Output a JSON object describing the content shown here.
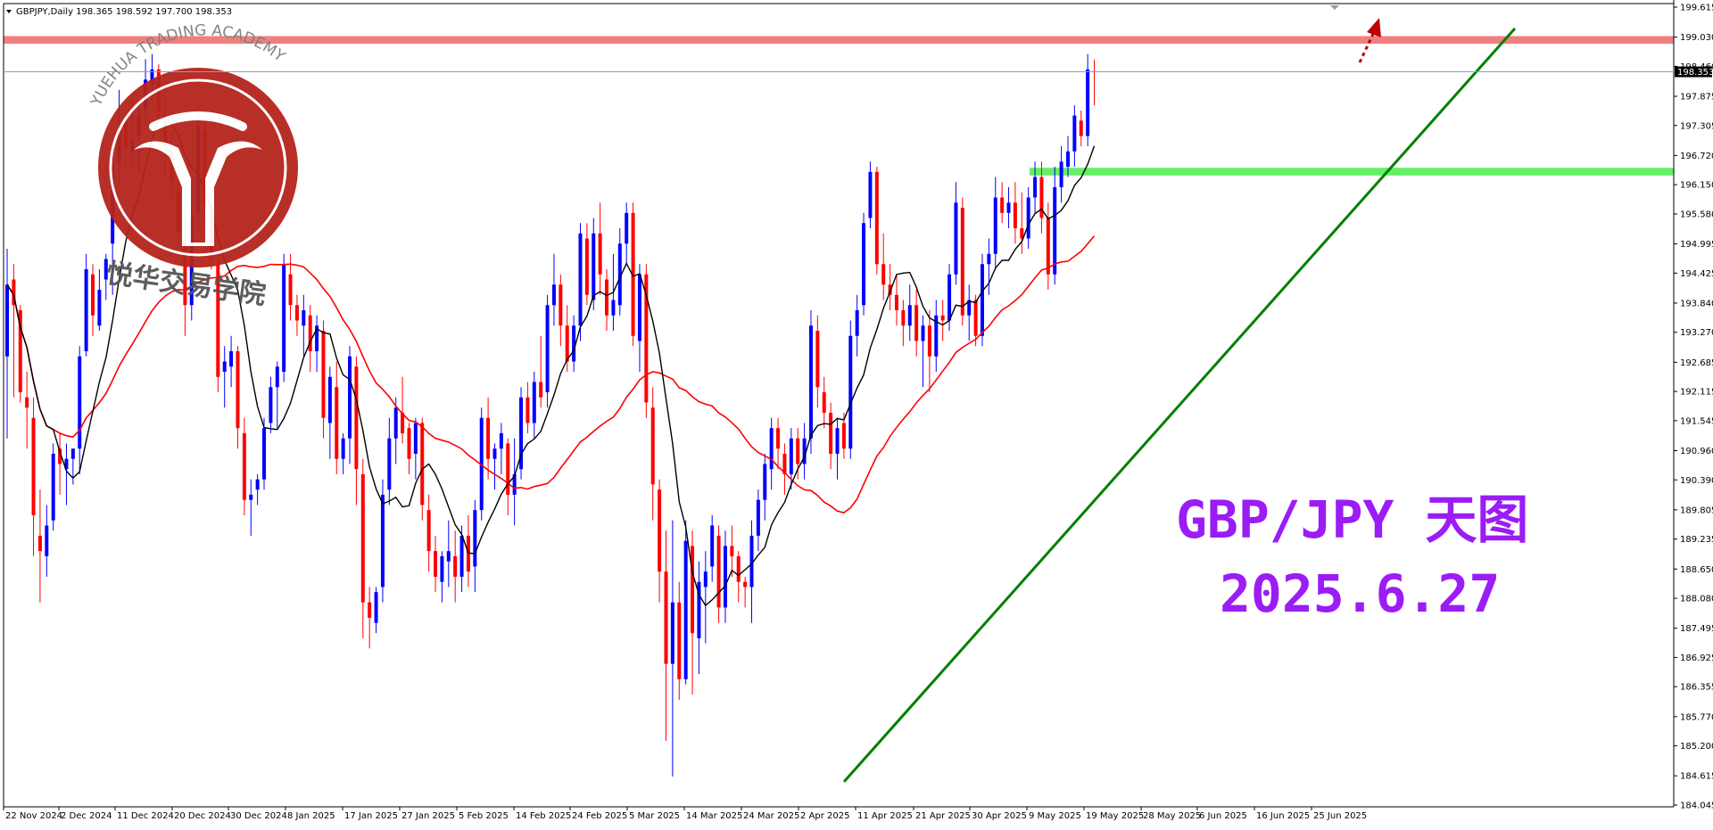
{
  "header": {
    "symbol_line": "GBPJPY,Daily  198.365 198.592 197.700 198.353"
  },
  "current_price_label": "198.353",
  "overlay": {
    "title": "GBP/JPY 天图",
    "date": "2025.6.27",
    "color": "#9b1cf5"
  },
  "watermark": {
    "ring_text": "YUEHUA TRADING ACADEMY",
    "cn_text": "悦华交易学院",
    "logo_color": "#b5241c"
  },
  "colors": {
    "bull": "#0000ff",
    "bear": "#ff0000",
    "fast_ma": "#000000",
    "slow_ma": "#ff0000",
    "trendline": "#008000",
    "resistance_band": "#f08080",
    "support_band": "#66ee66",
    "arrow": "#c00000"
  },
  "chart_data": {
    "type": "candlestick",
    "symbol": "GBPJPY",
    "timeframe": "Daily",
    "ylim": [
      184.045,
      199.615
    ],
    "y_ticks": [
      "199.615",
      "199.030",
      "198.460",
      "197.875",
      "197.305",
      "196.720",
      "196.150",
      "195.580",
      "194.995",
      "194.425",
      "193.840",
      "193.270",
      "192.685",
      "192.115",
      "191.545",
      "190.960",
      "190.390",
      "189.805",
      "189.235",
      "188.650",
      "188.080",
      "187.495",
      "186.925",
      "186.355",
      "185.770",
      "185.200",
      "184.615",
      "184.045"
    ],
    "x_labels": [
      "22 Nov 2024",
      "2 Dec 2024",
      "11 Dec 2024",
      "20 Dec 2024",
      "30 Dec 2024",
      "8 Jan 2025",
      "17 Jan 2025",
      "27 Jan 2025",
      "5 Feb 2025",
      "14 Feb 2025",
      "24 Feb 2025",
      "5 Mar 2025",
      "14 Mar 2025",
      "24 Mar 2025",
      "2 Apr 2025",
      "11 Apr 2025",
      "21 Apr 2025",
      "30 Apr 2025",
      "9 May 2025",
      "19 May 2025",
      "28 May 2025",
      "6 Jun 2025",
      "16 Jun 2025",
      "25 Jun 2025"
    ],
    "last_price": 198.353,
    "resistance_zone": [
      198.9,
      199.05
    ],
    "support_zone": [
      196.33,
      196.48
    ],
    "trendline": {
      "from": [
        "4 Apr 2025",
        184.5
      ],
      "to": [
        "1 Jul 2025",
        199.2
      ]
    },
    "candles": [
      [
        192.8,
        194.9,
        191.2,
        194.2
      ],
      [
        194.3,
        194.6,
        192.0,
        193.8
      ],
      [
        193.7,
        193.8,
        191.9,
        192.1
      ],
      [
        192.0,
        192.5,
        191.0,
        191.8
      ],
      [
        191.6,
        192.0,
        188.9,
        189.7
      ],
      [
        189.3,
        190.2,
        188.0,
        189.0
      ],
      [
        188.9,
        189.9,
        188.5,
        189.5
      ],
      [
        189.6,
        191.1,
        189.4,
        190.9
      ],
      [
        191.0,
        191.3,
        190.1,
        190.7
      ],
      [
        190.6,
        191.1,
        189.9,
        190.8
      ],
      [
        190.8,
        191.0,
        190.3,
        191.0
      ],
      [
        191.0,
        193.0,
        190.5,
        192.8
      ],
      [
        192.9,
        194.8,
        192.8,
        194.5
      ],
      [
        194.4,
        194.6,
        193.2,
        193.6
      ],
      [
        193.4,
        194.5,
        193.3,
        194.1
      ],
      [
        194.3,
        194.8,
        193.9,
        194.7
      ],
      [
        195.0,
        196.8,
        194.0,
        196.5
      ],
      [
        196.6,
        198.0,
        196.2,
        197.2
      ],
      [
        197.4,
        197.6,
        196.5,
        196.9
      ],
      [
        196.8,
        197.8,
        196.5,
        197.0
      ],
      [
        197.1,
        197.7,
        196.4,
        197.5
      ],
      [
        197.6,
        198.6,
        197.3,
        198.2
      ],
      [
        198.1,
        198.7,
        197.8,
        198.4
      ],
      [
        198.4,
        198.5,
        197.4,
        197.6
      ],
      [
        197.5,
        197.8,
        196.3,
        196.9
      ],
      [
        196.8,
        197.2,
        195.9,
        196.2
      ],
      [
        196.0,
        196.5,
        194.9,
        195.2
      ],
      [
        195.1,
        195.5,
        193.2,
        193.8
      ],
      [
        193.8,
        195.8,
        193.5,
        195.5
      ],
      [
        195.6,
        197.6,
        195.3,
        197.3
      ],
      [
        197.2,
        197.4,
        195.5,
        195.8
      ],
      [
        195.7,
        196.0,
        194.5,
        194.7
      ],
      [
        194.6,
        194.8,
        192.1,
        192.4
      ],
      [
        192.5,
        193.0,
        191.8,
        192.7
      ],
      [
        192.6,
        193.2,
        192.2,
        192.9
      ],
      [
        192.9,
        193.0,
        191.0,
        191.4
      ],
      [
        191.3,
        191.6,
        189.7,
        190.0
      ],
      [
        190.0,
        190.4,
        189.3,
        190.1
      ],
      [
        190.2,
        190.5,
        189.9,
        190.4
      ],
      [
        190.4,
        191.6,
        190.2,
        191.4
      ],
      [
        191.5,
        192.4,
        191.3,
        192.2
      ],
      [
        192.2,
        192.7,
        191.4,
        192.6
      ],
      [
        192.5,
        194.8,
        192.3,
        194.6
      ],
      [
        194.4,
        194.8,
        193.5,
        193.8
      ],
      [
        193.8,
        194.0,
        193.2,
        193.5
      ],
      [
        193.4,
        194.0,
        192.8,
        193.7
      ],
      [
        193.6,
        193.8,
        192.5,
        192.9
      ],
      [
        192.9,
        193.6,
        192.5,
        193.4
      ],
      [
        193.3,
        193.5,
        191.2,
        191.6
      ],
      [
        191.5,
        192.6,
        190.8,
        192.4
      ],
      [
        192.2,
        192.7,
        190.5,
        190.8
      ],
      [
        190.8,
        191.3,
        190.5,
        191.2
      ],
      [
        191.2,
        193.0,
        190.7,
        192.8
      ],
      [
        192.6,
        192.8,
        189.9,
        190.6
      ],
      [
        190.5,
        190.8,
        187.3,
        188.0
      ],
      [
        188.0,
        188.3,
        187.1,
        187.7
      ],
      [
        187.6,
        188.3,
        187.4,
        188.2
      ],
      [
        188.3,
        190.4,
        188.0,
        190.1
      ],
      [
        190.2,
        191.6,
        189.9,
        191.2
      ],
      [
        191.2,
        192.0,
        190.7,
        191.8
      ],
      [
        191.7,
        192.4,
        191.1,
        191.3
      ],
      [
        191.4,
        191.5,
        190.5,
        190.8
      ],
      [
        190.9,
        191.6,
        190.4,
        191.5
      ],
      [
        191.5,
        191.6,
        189.6,
        189.9
      ],
      [
        189.8,
        190.1,
        188.6,
        189.0
      ],
      [
        189.0,
        189.3,
        188.2,
        188.5
      ],
      [
        188.4,
        189.0,
        188.0,
        188.9
      ],
      [
        188.8,
        189.6,
        188.3,
        189.0
      ],
      [
        188.9,
        189.4,
        188.0,
        188.5
      ],
      [
        188.5,
        189.5,
        188.2,
        189.3
      ],
      [
        189.3,
        189.7,
        188.3,
        188.6
      ],
      [
        188.7,
        190.0,
        188.2,
        189.8
      ],
      [
        189.8,
        191.8,
        189.6,
        191.6
      ],
      [
        191.6,
        192.0,
        190.4,
        190.8
      ],
      [
        190.8,
        191.1,
        190.2,
        191.0
      ],
      [
        191.0,
        191.5,
        190.5,
        191.3
      ],
      [
        191.1,
        191.2,
        189.7,
        190.1
      ],
      [
        190.1,
        191.2,
        189.5,
        190.5
      ],
      [
        190.6,
        192.2,
        190.4,
        192.0
      ],
      [
        192.0,
        192.3,
        191.3,
        191.5
      ],
      [
        191.5,
        192.5,
        191.2,
        192.3
      ],
      [
        192.3,
        193.2,
        191.8,
        192.0
      ],
      [
        192.1,
        194.0,
        191.8,
        193.8
      ],
      [
        193.8,
        194.8,
        193.4,
        194.2
      ],
      [
        194.2,
        194.4,
        193.0,
        193.4
      ],
      [
        193.4,
        193.8,
        192.5,
        192.7
      ],
      [
        192.7,
        193.6,
        192.5,
        193.4
      ],
      [
        193.4,
        195.4,
        193.1,
        195.2
      ],
      [
        195.1,
        195.4,
        193.8,
        194.0
      ],
      [
        193.9,
        195.5,
        193.7,
        195.2
      ],
      [
        195.2,
        195.8,
        194.0,
        194.4
      ],
      [
        194.3,
        194.5,
        193.3,
        193.6
      ],
      [
        193.6,
        194.8,
        193.3,
        193.9
      ],
      [
        193.8,
        195.3,
        193.6,
        195.0
      ],
      [
        195.0,
        195.8,
        194.6,
        195.6
      ],
      [
        195.6,
        195.8,
        193.0,
        193.2
      ],
      [
        193.1,
        194.6,
        192.5,
        194.4
      ],
      [
        194.4,
        194.6,
        191.6,
        191.9
      ],
      [
        191.8,
        192.2,
        189.6,
        190.3
      ],
      [
        190.2,
        190.4,
        188.0,
        188.6
      ],
      [
        188.6,
        189.4,
        185.3,
        186.8
      ],
      [
        186.8,
        189.6,
        184.6,
        188.0
      ],
      [
        188.0,
        188.4,
        186.1,
        186.5
      ],
      [
        186.5,
        189.6,
        186.4,
        189.2
      ],
      [
        189.1,
        189.4,
        186.2,
        187.4
      ],
      [
        187.3,
        188.8,
        186.6,
        188.4
      ],
      [
        188.3,
        189.0,
        187.2,
        188.6
      ],
      [
        188.7,
        189.7,
        188.4,
        189.5
      ],
      [
        189.3,
        189.5,
        187.6,
        187.9
      ],
      [
        187.9,
        189.4,
        187.6,
        189.1
      ],
      [
        189.1,
        189.5,
        188.5,
        188.9
      ],
      [
        188.9,
        189.0,
        188.0,
        188.4
      ],
      [
        188.4,
        188.5,
        187.9,
        188.3
      ],
      [
        188.3,
        189.6,
        187.6,
        189.3
      ],
      [
        189.3,
        190.2,
        189.0,
        190.0
      ],
      [
        190.0,
        190.9,
        189.6,
        190.7
      ],
      [
        190.6,
        191.6,
        190.2,
        191.4
      ],
      [
        191.4,
        191.6,
        190.6,
        191.0
      ],
      [
        190.9,
        191.1,
        190.1,
        190.5
      ],
      [
        190.5,
        191.4,
        190.2,
        191.2
      ],
      [
        191.2,
        191.4,
        190.4,
        190.7
      ],
      [
        190.7,
        191.5,
        190.4,
        191.2
      ],
      [
        191.2,
        193.7,
        190.9,
        193.4
      ],
      [
        193.3,
        193.6,
        191.8,
        192.2
      ],
      [
        192.1,
        192.4,
        191.4,
        191.7
      ],
      [
        191.7,
        191.9,
        190.6,
        190.9
      ],
      [
        190.9,
        191.6,
        190.4,
        191.4
      ],
      [
        191.5,
        191.7,
        190.8,
        191.0
      ],
      [
        191.0,
        193.5,
        190.8,
        193.2
      ],
      [
        193.2,
        194.0,
        192.8,
        193.7
      ],
      [
        193.8,
        195.6,
        193.6,
        195.4
      ],
      [
        195.5,
        196.6,
        195.3,
        196.4
      ],
      [
        196.4,
        196.5,
        194.4,
        194.6
      ],
      [
        194.6,
        195.2,
        193.9,
        194.2
      ],
      [
        194.2,
        194.6,
        193.7,
        194.0
      ],
      [
        194.0,
        194.4,
        193.4,
        193.7
      ],
      [
        193.7,
        193.9,
        193.0,
        193.4
      ],
      [
        193.4,
        194.2,
        193.1,
        193.8
      ],
      [
        193.8,
        194.1,
        192.8,
        193.1
      ],
      [
        193.1,
        193.6,
        192.2,
        193.4
      ],
      [
        193.4,
        193.7,
        192.1,
        192.8
      ],
      [
        192.8,
        193.9,
        192.5,
        193.6
      ],
      [
        193.6,
        193.9,
        193.1,
        193.5
      ],
      [
        193.5,
        194.6,
        193.3,
        194.4
      ],
      [
        194.4,
        196.2,
        194.2,
        195.8
      ],
      [
        195.7,
        195.9,
        193.4,
        193.6
      ],
      [
        193.6,
        194.2,
        193.1,
        193.9
      ],
      [
        193.9,
        194.0,
        193.0,
        193.2
      ],
      [
        193.2,
        194.8,
        193.0,
        194.6
      ],
      [
        194.6,
        195.1,
        194.0,
        194.8
      ],
      [
        194.8,
        196.3,
        194.5,
        195.9
      ],
      [
        195.9,
        196.2,
        195.4,
        195.6
      ],
      [
        195.6,
        196.1,
        195.3,
        195.8
      ],
      [
        195.8,
        196.2,
        195.0,
        195.3
      ],
      [
        195.3,
        196.0,
        194.8,
        195.1
      ],
      [
        195.1,
        196.1,
        194.9,
        195.9
      ],
      [
        195.9,
        196.6,
        195.6,
        196.3
      ],
      [
        196.3,
        196.6,
        195.2,
        195.5
      ],
      [
        195.5,
        195.8,
        194.1,
        194.4
      ],
      [
        194.4,
        196.5,
        194.2,
        196.1
      ],
      [
        196.1,
        196.9,
        195.8,
        196.6
      ],
      [
        196.5,
        197.1,
        196.3,
        196.8
      ],
      [
        196.8,
        197.7,
        196.5,
        197.5
      ],
      [
        197.4,
        197.6,
        196.9,
        197.1
      ],
      [
        197.1,
        198.7,
        196.9,
        198.4
      ],
      [
        198.365,
        198.592,
        197.7,
        198.353
      ]
    ]
  }
}
